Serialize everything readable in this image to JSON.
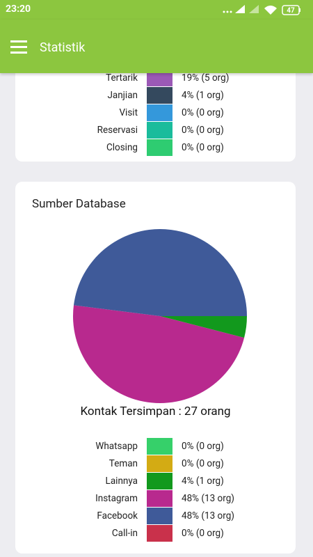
{
  "status_bar": {
    "time": "23:20",
    "battery": "47"
  },
  "app_bar": {
    "title": "Statistik"
  },
  "card1": {
    "legend": [
      {
        "label": "Tertarik",
        "color": "#9b59b6",
        "text": "19% (5 org)"
      },
      {
        "label": "Janjian",
        "color": "#34495e",
        "text": "4% (1 org)"
      },
      {
        "label": "Visit",
        "color": "#3498db",
        "text": "0% (0 org)"
      },
      {
        "label": "Reservasi",
        "color": "#1abc9c",
        "text": "0% (0 org)"
      },
      {
        "label": "Closing",
        "color": "#2ecc71",
        "text": "0% (0 org)"
      }
    ]
  },
  "chart_data": {
    "type": "pie",
    "title": "Sumber Database",
    "caption": "Kontak Tersimpan : 27 orang",
    "categories": [
      "Whatsapp",
      "Teman",
      "Lainnya",
      "Instagram",
      "Facebook",
      "Call-in"
    ],
    "values": [
      0,
      0,
      4,
      48,
      48,
      0
    ],
    "value_labels": [
      "0% (0 org)",
      "0% (0 org)",
      "4% (1 org)",
      "48% (13 org)",
      "48% (13 org)",
      "0% (0 org)"
    ],
    "colors": [
      "#36d06a",
      "#d3ab14",
      "#12991d",
      "#b8298e",
      "#3f5a99",
      "#c9314b"
    ]
  }
}
